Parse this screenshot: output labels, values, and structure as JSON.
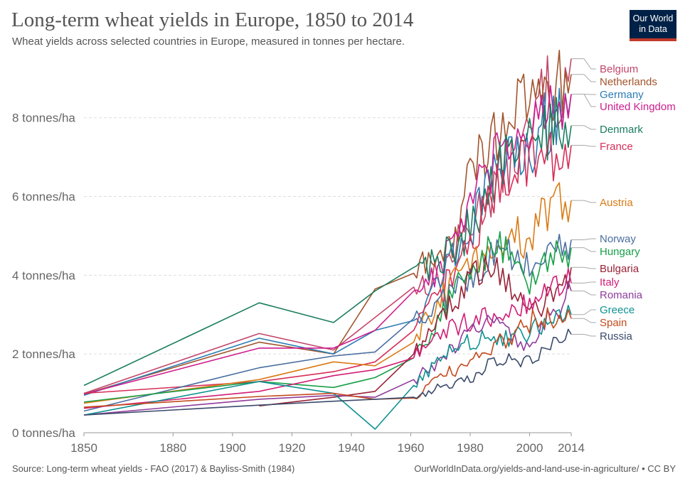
{
  "title": "Long-term wheat yields in Europe, 1850 to 2014",
  "subtitle": "Wheat yields across selected countries in Europe, measured in tonnes per hectare.",
  "logo": {
    "line1": "Our World",
    "line2": "in Data",
    "bg": "#002147",
    "accent": "#c0392b"
  },
  "footer": {
    "source": "Source: Long-term wheat yields - FAO (2017) & Bayliss-Smith (1984)",
    "url": "OurWorldInData.org/yields-and-land-use-in-agriculture/ • CC BY"
  },
  "chart_data": {
    "type": "line",
    "title": "Long-term wheat yields in Europe, 1850 to 2014",
    "xlabel": "",
    "ylabel": "tonnes/ha",
    "xlim": [
      1850,
      2014
    ],
    "ylim": [
      0,
      9.8
    ],
    "grid": "horizontal dashed",
    "legend": "right (line-end labels)",
    "x_ticks": [
      {
        "value": 1850,
        "label": "1850"
      },
      {
        "value": 1880,
        "label": "1880"
      },
      {
        "value": 1900,
        "label": "1900"
      },
      {
        "value": 1920,
        "label": "1920"
      },
      {
        "value": 1940,
        "label": "1940"
      },
      {
        "value": 1960,
        "label": "1960"
      },
      {
        "value": 1980,
        "label": "1980"
      },
      {
        "value": 2000,
        "label": "2000"
      },
      {
        "value": 2014,
        "label": "2014"
      }
    ],
    "y_ticks": [
      {
        "value": 0,
        "label": "0 tonnes/ha"
      },
      {
        "value": 2,
        "label": "2 tonnes/ha"
      },
      {
        "value": 4,
        "label": "4 tonnes/ha"
      },
      {
        "value": 6,
        "label": "6 tonnes/ha"
      },
      {
        "value": 8,
        "label": "8 tonnes/ha"
      }
    ],
    "series": [
      {
        "name": "Belgium",
        "color": "#c2476b",
        "final": 9.5,
        "points": [
          [
            1850,
            1.0
          ],
          [
            1909,
            2.52
          ],
          [
            1934,
            2.1
          ],
          [
            1961,
            3.7
          ],
          [
            1970,
            4.0
          ],
          [
            1980,
            5.3
          ],
          [
            1990,
            6.5
          ],
          [
            2000,
            7.5
          ],
          [
            2005,
            8.8
          ],
          [
            2010,
            8.5
          ],
          [
            2014,
            9.5
          ]
        ]
      },
      {
        "name": "Netherlands",
        "color": "#a2542c",
        "final": 9.1,
        "points": [
          [
            1850,
            0.98
          ],
          [
            1909,
            2.3
          ],
          [
            1934,
            2.0
          ],
          [
            1948,
            3.65
          ],
          [
            1961,
            4.05
          ],
          [
            1970,
            4.5
          ],
          [
            1975,
            5.0
          ],
          [
            1980,
            6.6
          ],
          [
            1990,
            7.8
          ],
          [
            2000,
            8.4
          ],
          [
            2005,
            9.0
          ],
          [
            2010,
            8.8
          ],
          [
            2014,
            9.1
          ]
        ]
      },
      {
        "name": "Germany",
        "color": "#2b7cb5",
        "final": 8.6,
        "points": [
          [
            1850,
            0.95
          ],
          [
            1909,
            2.4
          ],
          [
            1934,
            2.0
          ],
          [
            1948,
            2.6
          ],
          [
            1961,
            2.85
          ],
          [
            1970,
            4.0
          ],
          [
            1980,
            5.2
          ],
          [
            1990,
            6.8
          ],
          [
            2000,
            7.3
          ],
          [
            2005,
            7.8
          ],
          [
            2014,
            8.6
          ]
        ]
      },
      {
        "name": "United Kingdom",
        "color": "#ce1d8f",
        "final": 8.6,
        "points": [
          [
            1850,
            0.98
          ],
          [
            1909,
            2.15
          ],
          [
            1934,
            2.15
          ],
          [
            1948,
            2.6
          ],
          [
            1961,
            3.6
          ],
          [
            1970,
            4.2
          ],
          [
            1980,
            5.8
          ],
          [
            1990,
            7.0
          ],
          [
            2000,
            8.0
          ],
          [
            2005,
            7.8
          ],
          [
            2014,
            8.6
          ]
        ]
      },
      {
        "name": "Denmark",
        "color": "#1a7d5f",
        "final": 7.8,
        "points": [
          [
            1850,
            1.2
          ],
          [
            1909,
            3.3
          ],
          [
            1934,
            2.8
          ],
          [
            1948,
            3.6
          ],
          [
            1961,
            4.2
          ],
          [
            1970,
            4.4
          ],
          [
            1980,
            5.2
          ],
          [
            1990,
            6.8
          ],
          [
            2000,
            7.4
          ],
          [
            2005,
            7.6
          ],
          [
            2014,
            7.8
          ]
        ]
      },
      {
        "name": "France",
        "color": "#d62e57",
        "final": 7.3,
        "points": [
          [
            1850,
            1.0
          ],
          [
            1909,
            1.3
          ],
          [
            1934,
            1.55
          ],
          [
            1948,
            1.8
          ],
          [
            1961,
            2.6
          ],
          [
            1970,
            3.5
          ],
          [
            1980,
            4.8
          ],
          [
            1990,
            6.4
          ],
          [
            2000,
            7.1
          ],
          [
            2005,
            7.0
          ],
          [
            2014,
            7.3
          ]
        ]
      },
      {
        "name": "Austria",
        "color": "#d97b17",
        "final": 5.9,
        "points": [
          [
            1850,
            0.75
          ],
          [
            1909,
            1.35
          ],
          [
            1934,
            1.8
          ],
          [
            1948,
            1.7
          ],
          [
            1961,
            2.3
          ],
          [
            1970,
            3.4
          ],
          [
            1980,
            4.3
          ],
          [
            1990,
            4.9
          ],
          [
            2000,
            5.0
          ],
          [
            2005,
            5.5
          ],
          [
            2014,
            5.9
          ]
        ]
      },
      {
        "name": "Norway",
        "color": "#4a6fa0",
        "final": 4.9,
        "points": [
          [
            1850,
            0.55
          ],
          [
            1909,
            1.65
          ],
          [
            1934,
            1.95
          ],
          [
            1948,
            2.05
          ],
          [
            1961,
            2.9
          ],
          [
            1970,
            3.3
          ],
          [
            1980,
            4.0
          ],
          [
            1990,
            4.6
          ],
          [
            2000,
            4.2
          ],
          [
            2005,
            4.5
          ],
          [
            2014,
            4.9
          ]
        ]
      },
      {
        "name": "Hungary",
        "color": "#18a049",
        "final": 4.7,
        "points": [
          [
            1850,
            0.78
          ],
          [
            1909,
            1.3
          ],
          [
            1934,
            1.15
          ],
          [
            1948,
            1.4
          ],
          [
            1961,
            1.9
          ],
          [
            1970,
            3.0
          ],
          [
            1980,
            4.2
          ],
          [
            1990,
            4.8
          ],
          [
            2000,
            3.9
          ],
          [
            2005,
            4.3
          ],
          [
            2014,
            4.7
          ]
        ]
      },
      {
        "name": "Bulgaria",
        "color": "#992136",
        "final": 4.2,
        "points": [
          [
            1909,
            0.68
          ],
          [
            1934,
            0.9
          ],
          [
            1948,
            1.05
          ],
          [
            1961,
            2.0
          ],
          [
            1970,
            2.9
          ],
          [
            1980,
            3.9
          ],
          [
            1990,
            4.2
          ],
          [
            2000,
            2.9
          ],
          [
            2005,
            3.4
          ],
          [
            2014,
            4.2
          ]
        ]
      },
      {
        "name": "Italy",
        "color": "#d11d76",
        "final": 3.8,
        "points": [
          [
            1850,
            0.62
          ],
          [
            1909,
            1.05
          ],
          [
            1934,
            1.45
          ],
          [
            1948,
            1.6
          ],
          [
            1961,
            1.9
          ],
          [
            1970,
            2.5
          ],
          [
            1980,
            2.8
          ],
          [
            1990,
            3.1
          ],
          [
            2000,
            3.3
          ],
          [
            2005,
            3.6
          ],
          [
            2014,
            3.8
          ]
        ]
      },
      {
        "name": "Romania",
        "color": "#8f3c9c",
        "final": 3.6,
        "points": [
          [
            1850,
            0.45
          ],
          [
            1909,
            0.85
          ],
          [
            1934,
            0.95
          ],
          [
            1948,
            0.9
          ],
          [
            1961,
            1.35
          ],
          [
            1970,
            1.8
          ],
          [
            1980,
            2.6
          ],
          [
            1990,
            2.8
          ],
          [
            2000,
            2.2
          ],
          [
            2005,
            2.8
          ],
          [
            2014,
            3.6
          ]
        ]
      },
      {
        "name": "Greece",
        "color": "#0e9191",
        "final": 3.0,
        "points": [
          [
            1850,
            0.45
          ],
          [
            1909,
            1.3
          ],
          [
            1934,
            1.0
          ],
          [
            1948,
            0.09
          ],
          [
            1961,
            1.2
          ],
          [
            1970,
            1.9
          ],
          [
            1980,
            2.3
          ],
          [
            1990,
            2.4
          ],
          [
            2000,
            2.6
          ],
          [
            2005,
            2.8
          ],
          [
            2014,
            3.0
          ]
        ]
      },
      {
        "name": "Spain",
        "color": "#c44a1d",
        "final": 2.9,
        "points": [
          [
            1850,
            0.65
          ],
          [
            1909,
            0.92
          ],
          [
            1934,
            1.0
          ],
          [
            1948,
            0.85
          ],
          [
            1961,
            0.88
          ],
          [
            1970,
            1.4
          ],
          [
            1980,
            1.8
          ],
          [
            1990,
            2.3
          ],
          [
            2000,
            2.8
          ],
          [
            2005,
            2.9
          ],
          [
            2014,
            2.9
          ]
        ]
      },
      {
        "name": "Russia",
        "color": "#3b4a6b",
        "final": 2.5,
        "points": [
          [
            1850,
            0.45
          ],
          [
            1909,
            0.7
          ],
          [
            1934,
            0.8
          ],
          [
            1948,
            0.85
          ],
          [
            1961,
            0.9
          ],
          [
            1970,
            1.2
          ],
          [
            1980,
            1.4
          ],
          [
            1990,
            1.9
          ],
          [
            2000,
            1.8
          ],
          [
            2005,
            2.1
          ],
          [
            2014,
            2.5
          ]
        ]
      }
    ],
    "legend_entries": [
      {
        "name": "Belgium",
        "color": "#c2476b"
      },
      {
        "name": "Netherlands",
        "color": "#a2542c"
      },
      {
        "name": "Germany",
        "color": "#2b7cb5"
      },
      {
        "name": "United Kingdom",
        "color": "#ce1d8f"
      },
      {
        "name": "Denmark",
        "color": "#1a7d5f"
      },
      {
        "name": "France",
        "color": "#d62e57"
      },
      {
        "name": "Austria",
        "color": "#d97b17"
      },
      {
        "name": "Norway",
        "color": "#4a6fa0"
      },
      {
        "name": "Hungary",
        "color": "#18a049"
      },
      {
        "name": "Bulgaria",
        "color": "#992136"
      },
      {
        "name": "Italy",
        "color": "#d11d76"
      },
      {
        "name": "Romania",
        "color": "#8f3c9c"
      },
      {
        "name": "Greece",
        "color": "#0e9191"
      },
      {
        "name": "Spain",
        "color": "#c44a1d"
      },
      {
        "name": "Russia",
        "color": "#3b4a6b"
      }
    ]
  }
}
